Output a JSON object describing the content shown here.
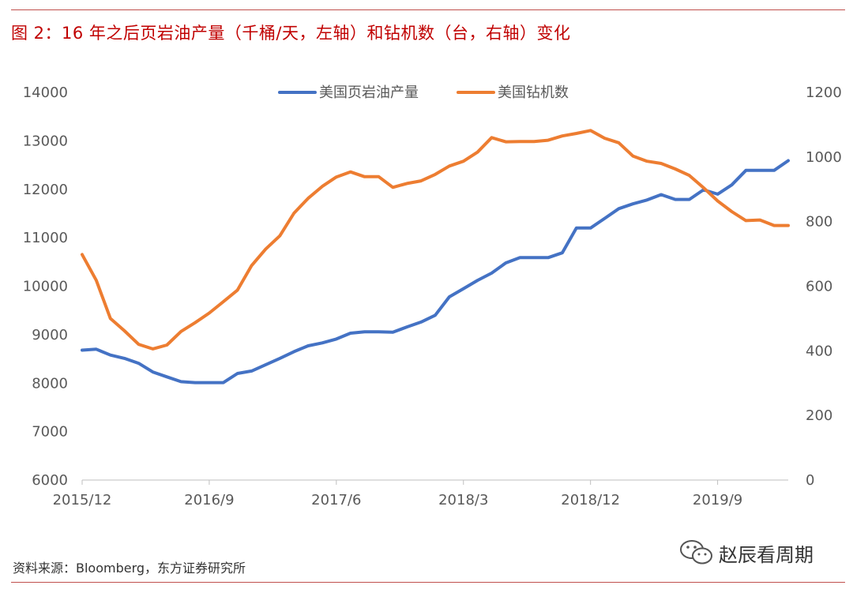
{
  "title": "图 2：16 年之后页岩油产量（千桶/天，左轴）和钻机数（台，右轴）变化",
  "source": "资料来源：Bloomberg，东方证券研究所",
  "watermark": "赵辰看周期",
  "watermark_icon": "wechat-icon",
  "colors": {
    "title": "#c00000",
    "rule": "#c0504d",
    "series1": "#4472c4",
    "series2": "#ed7d31"
  },
  "chart_data": {
    "type": "line",
    "title": "",
    "xlabel": "",
    "ylabel": "",
    "y2label": "",
    "legend_position": "top",
    "grid": false,
    "x_tick_labels": [
      "2015/12",
      "2016/9",
      "2017/6",
      "2018/3",
      "2018/12",
      "2019/9"
    ],
    "x_tick_indices": [
      0,
      9,
      18,
      27,
      36,
      45
    ],
    "x_count": 51,
    "y_left_ticks": [
      "14000",
      "13000",
      "12000",
      "11000",
      "10000",
      "9000",
      "8000",
      "7000",
      "6000"
    ],
    "y_right_ticks": [
      "1200",
      "1000",
      "800",
      "600",
      "400",
      "200",
      "0"
    ],
    "ylim": [
      6000,
      14000
    ],
    "y2lim": [
      0,
      1200
    ],
    "series": [
      {
        "name": "美国页岩油产量",
        "axis": "left",
        "color": "#4472c4",
        "values": [
          8680,
          8700,
          8580,
          8510,
          8410,
          8230,
          8130,
          8030,
          8010,
          8010,
          8010,
          8200,
          8250,
          8380,
          8510,
          8650,
          8770,
          8830,
          8910,
          9030,
          9060,
          9060,
          9050,
          9160,
          9260,
          9400,
          9780,
          9950,
          10120,
          10270,
          10480,
          10590,
          10590,
          10590,
          10690,
          11200,
          11200,
          11400,
          11600,
          11700,
          11780,
          11890,
          11790,
          11790,
          11990,
          11900,
          12090,
          12390,
          12390,
          12390,
          12590
        ]
      },
      {
        "name": "美国钻机数",
        "axis": "right",
        "color": "#ed7d31",
        "values": [
          698,
          618,
          500,
          462,
          420,
          406,
          418,
          460,
          487,
          517,
          552,
          588,
          664,
          715,
          756,
          826,
          872,
          909,
          938,
          954,
          939,
          939,
          906,
          918,
          926,
          946,
          972,
          987,
          1015,
          1060,
          1047,
          1048,
          1048,
          1052,
          1065,
          1073,
          1082,
          1058,
          1044,
          1003,
          987,
          980,
          963,
          943,
          905,
          864,
          831,
          803,
          805,
          788,
          788
        ]
      }
    ]
  }
}
